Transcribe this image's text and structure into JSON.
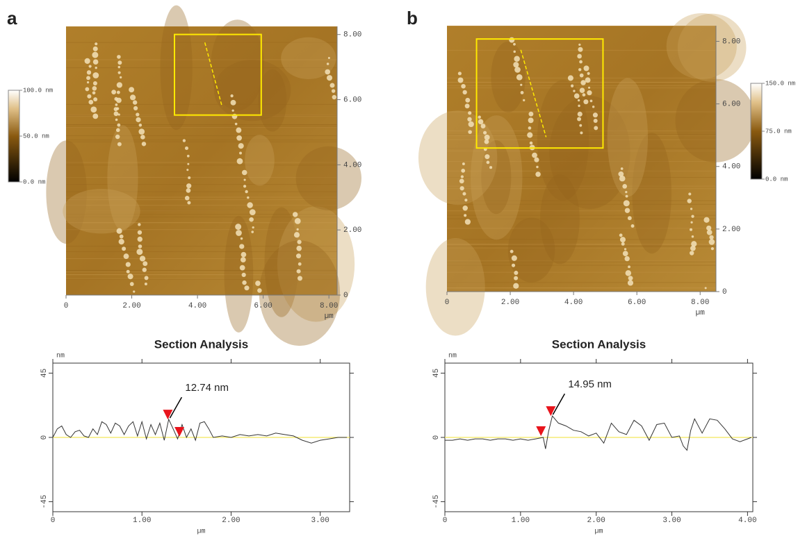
{
  "chart_data": [
    {
      "type": "image",
      "panel_label": "a",
      "xlim": [
        0,
        8.25
      ],
      "ylim": [
        0,
        8.25
      ],
      "xticks": [
        0,
        {
          "value": 2,
          "label": "2.00"
        },
        {
          "value": 4,
          "label": "4.00"
        },
        {
          "value": 6,
          "label": "6.00"
        },
        {
          "value": 8,
          "label": "8.00"
        }
      ],
      "yticks": [
        0,
        {
          "value": 2,
          "label": "2.00"
        },
        {
          "value": 4,
          "label": "4.00"
        },
        {
          "value": 6,
          "label": "6.00"
        },
        {
          "value": 8,
          "label": "8.00"
        }
      ],
      "x_unit": "µm",
      "colorbar": {
        "lim": [
          0,
          100
        ],
        "ticks": [
          {
            "value": 0,
            "label": "0.0 nm"
          },
          {
            "value": 50,
            "label": "50.0 nm"
          },
          {
            "value": 100,
            "label": "100.0 nm"
          }
        ]
      }
    },
    {
      "type": "image",
      "panel_label": "b",
      "xlim": [
        0,
        8.5
      ],
      "ylim": [
        0,
        8.5
      ],
      "xticks": [
        0,
        {
          "value": 2,
          "label": "2.00"
        },
        {
          "value": 4,
          "label": "4.00"
        },
        {
          "value": 6,
          "label": "6.00"
        },
        {
          "value": 8,
          "label": "8.00"
        }
      ],
      "yticks": [
        0,
        {
          "value": 2,
          "label": "2.00"
        },
        {
          "value": 4,
          "label": "4.00"
        },
        {
          "value": 6,
          "label": "6.00"
        },
        {
          "value": 8,
          "label": "8.00"
        }
      ],
      "x_unit": "µm",
      "colorbar": {
        "lim": [
          0,
          150
        ],
        "ticks": [
          {
            "value": 0,
            "label": "0.0 nm"
          },
          {
            "value": 75,
            "label": "75.0 nm"
          },
          {
            "value": 150,
            "label": "150.0 nm"
          }
        ]
      }
    },
    {
      "type": "line",
      "title": "Section Analysis",
      "y_unit": "nm",
      "x_unit": "µm",
      "color": "#333333",
      "xlim": [
        0,
        3.33
      ],
      "ylim": [
        -52,
        52
      ],
      "xticks": [
        0,
        {
          "value": 1,
          "label": "1.00"
        },
        {
          "value": 2,
          "label": "2.00"
        },
        {
          "value": 3,
          "label": "3.00"
        }
      ],
      "yticks": [
        -45,
        0,
        45
      ],
      "reference_line": 0,
      "x": [
        0,
        0.05,
        0.1,
        0.15,
        0.2,
        0.25,
        0.3,
        0.35,
        0.4,
        0.45,
        0.5,
        0.55,
        0.6,
        0.65,
        0.7,
        0.75,
        0.8,
        0.85,
        0.9,
        0.95,
        1.0,
        1.05,
        1.1,
        1.15,
        1.2,
        1.25,
        1.3,
        1.35,
        1.4,
        1.45,
        1.5,
        1.55,
        1.6,
        1.65,
        1.7,
        1.75,
        1.8,
        1.9,
        2.0,
        2.1,
        2.2,
        2.3,
        2.4,
        2.5,
        2.6,
        2.7,
        2.8,
        2.9,
        3.0,
        3.1,
        3.2,
        3.3
      ],
      "values": [
        0,
        6,
        8,
        2,
        0,
        4,
        5,
        1,
        0,
        6,
        2,
        11,
        9,
        3,
        10,
        8,
        2,
        8,
        11,
        1,
        11,
        -1,
        9,
        2,
        10,
        -2,
        12.7,
        6,
        -1,
        9,
        0,
        6,
        -2,
        10,
        11,
        6,
        0,
        1,
        0,
        2,
        1,
        2,
        1,
        3,
        2,
        1,
        -2,
        -4,
        -2,
        -1,
        0,
        0
      ],
      "markers": [
        {
          "x": 1.29,
          "y": 12.6
        },
        {
          "x": 1.42,
          "y": 0.5
        }
      ],
      "annotation": "12.74 nm"
    },
    {
      "type": "line",
      "title": "Section Analysis",
      "y_unit": "nm",
      "x_unit": "µm",
      "color": "#333333",
      "xlim": [
        0,
        4.07
      ],
      "ylim": [
        -52,
        52
      ],
      "xticks": [
        0,
        {
          "value": 1,
          "label": "1.00"
        },
        {
          "value": 2,
          "label": "2.00"
        },
        {
          "value": 3,
          "label": "3.00"
        },
        {
          "value": 4,
          "label": "4.00"
        }
      ],
      "yticks": [
        -45,
        0,
        45
      ],
      "reference_line": 0,
      "x": [
        0,
        0.1,
        0.2,
        0.3,
        0.4,
        0.5,
        0.6,
        0.7,
        0.8,
        0.9,
        1.0,
        1.1,
        1.2,
        1.3,
        1.33,
        1.37,
        1.42,
        1.5,
        1.6,
        1.7,
        1.8,
        1.9,
        2.0,
        2.1,
        2.2,
        2.3,
        2.4,
        2.5,
        2.6,
        2.7,
        2.8,
        2.9,
        3.0,
        3.1,
        3.15,
        3.2,
        3.25,
        3.3,
        3.4,
        3.5,
        3.6,
        3.7,
        3.8,
        3.9,
        4.0,
        4.05
      ],
      "values": [
        -2,
        -2,
        -1,
        -2,
        -1,
        -1,
        -2,
        -1,
        -1,
        -2,
        -1,
        -2,
        -1,
        0,
        -8,
        4,
        15,
        10,
        8,
        5,
        4,
        1,
        3,
        -4,
        10,
        4,
        2,
        12,
        8,
        -2,
        9,
        10,
        0,
        1,
        -6,
        -9,
        5,
        13,
        3,
        13,
        12,
        6,
        -1,
        -3,
        -1,
        0
      ],
      "markers": [
        {
          "x": 1.27,
          "y": 1
        },
        {
          "x": 1.4,
          "y": 15
        }
      ],
      "annotation": "14.95 nm"
    }
  ]
}
